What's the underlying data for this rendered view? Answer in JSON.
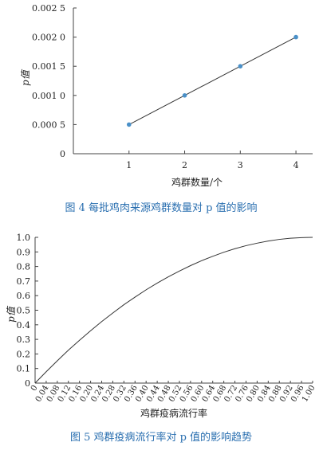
{
  "chart_data": [
    {
      "type": "line",
      "x": [
        1,
        2,
        3,
        4
      ],
      "series": [
        {
          "values": [
            0.0005,
            0.001,
            0.0015,
            0.002
          ]
        }
      ],
      "xlabel": "鸡群数量/个",
      "ylabel": "p值",
      "caption": "图 4   每批鸡肉来源鸡群数量对 p 值的影响",
      "xlim": [
        0,
        4.3
      ],
      "ylim": [
        0,
        0.0025
      ],
      "xticks": [
        "1",
        "2",
        "3",
        "4"
      ],
      "yticks": [
        "0",
        "0.000 5",
        "0.001 0",
        "0.001 5",
        "0.002 0",
        "0.002 5"
      ],
      "line_color": "#333333",
      "marker_color": "#4a90c8",
      "grid": false
    },
    {
      "type": "line",
      "x": [
        0,
        0.04,
        0.08,
        0.12,
        0.16,
        0.2,
        0.24,
        0.28,
        0.32,
        0.36,
        0.4,
        0.44,
        0.48,
        0.52,
        0.56,
        0.6,
        0.64,
        0.68,
        0.72,
        0.76,
        0.8,
        0.84,
        0.88,
        0.92,
        0.96,
        1.0
      ],
      "series": [
        {
          "values": [
            0,
            0.078,
            0.153,
            0.226,
            0.294,
            0.359,
            0.422,
            0.481,
            0.538,
            0.59,
            0.64,
            0.686,
            0.729,
            0.769,
            0.806,
            0.84,
            0.87,
            0.898,
            0.922,
            0.943,
            0.96,
            0.975,
            0.986,
            0.994,
            0.998,
            1.0
          ]
        }
      ],
      "xlabel": "鸡群疫病流行率",
      "ylabel": "p值",
      "caption": "图 5   鸡群疫病流行率对 p 值的影响趋势",
      "xlim": [
        0,
        1.0
      ],
      "ylim": [
        0,
        1.0
      ],
      "xticks": [
        "0",
        "0.04",
        "0.08",
        "0.12",
        "0.16",
        "0.20",
        "0.24",
        "0.28",
        "0.32",
        "0.36",
        "0.40",
        "0.44",
        "0.48",
        "0.52",
        "0.56",
        "0.60",
        "0.64",
        "0.68",
        "0.72",
        "0.76",
        "0.80",
        "0.84",
        "0.88",
        "0.92",
        "0.96",
        "1.00"
      ],
      "yticks": [
        "0",
        "0.1",
        "0.2",
        "0.3",
        "0.4",
        "0.5",
        "0.6",
        "0.7",
        "0.8",
        "0.9",
        "1.0"
      ],
      "line_color": "#333333",
      "grid": false
    }
  ]
}
